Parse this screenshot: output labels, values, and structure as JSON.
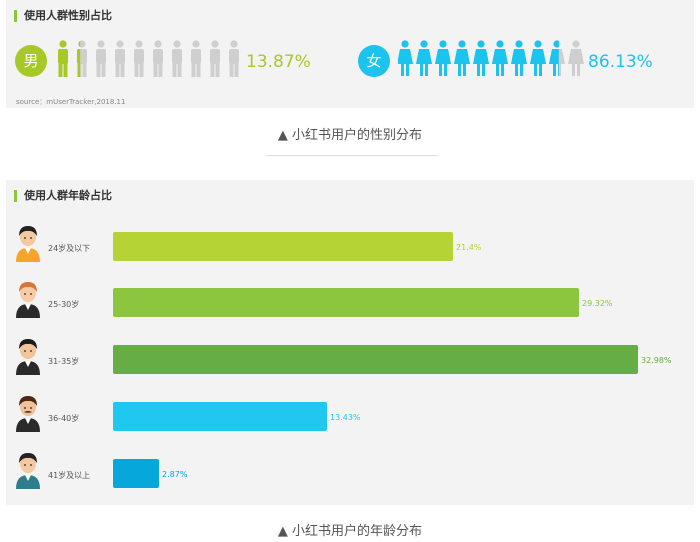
{
  "gender_panel": {
    "title": "使用人群性别占比",
    "male": {
      "glyph": "男",
      "percent": "13.87%",
      "fraction": 0.1387,
      "color": "#a7c927"
    },
    "female": {
      "glyph": "女",
      "percent": "86.13%",
      "fraction": 0.8613,
      "color": "#1cc3ec"
    },
    "source": "source：mUserTracker,2018.11"
  },
  "gender_caption": "▲ 小红书用户的性别分布",
  "age_panel": {
    "title": "使用人群年龄占比"
  },
  "age_caption": "▲ 小红书用户的年龄分布",
  "chart_data": [
    {
      "type": "bar",
      "title": "使用人群性别占比",
      "categories": [
        "男",
        "女"
      ],
      "values": [
        13.87,
        86.13
      ],
      "value_labels": [
        "13.87%",
        "86.13%"
      ]
    },
    {
      "type": "bar",
      "orientation": "horizontal",
      "title": "使用人群年龄占比",
      "categories": [
        "24岁及以下",
        "25-30岁",
        "31-35岁",
        "36-40岁",
        "41岁及以上"
      ],
      "values": [
        21.4,
        29.32,
        32.98,
        13.43,
        2.87
      ],
      "value_labels": [
        "21.4%",
        "29.32%",
        "32.98%",
        "13.43%",
        "2.87%"
      ],
      "colors": [
        "#b5d334",
        "#8cc63f",
        "#66ad45",
        "#20c8f0",
        "#06a8dc"
      ],
      "label_colors": [
        "#b5d334",
        "#8cc63f",
        "#66ad45",
        "#20c8f0",
        "#06a8dc"
      ],
      "xlim": [
        0,
        33
      ]
    }
  ]
}
